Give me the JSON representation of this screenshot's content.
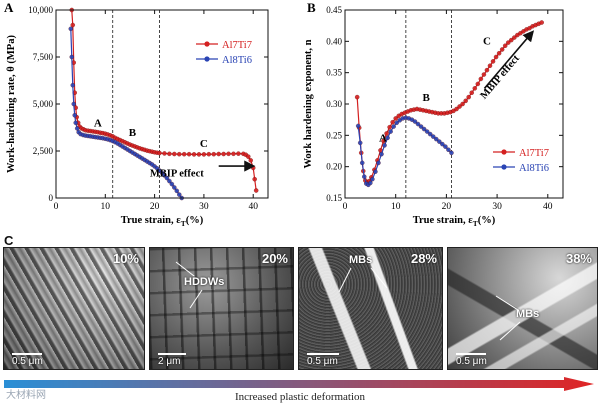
{
  "chart_data": [
    {
      "panel": "A",
      "type": "line",
      "ylabel": "Work-hardening rate, θ (MPa)",
      "xlabel": "True strain, ε",
      "xlabel_sub": "T",
      "xlabel_unit": "(%)",
      "xlim": [
        0,
        43
      ],
      "ylim": [
        0,
        10000
      ],
      "x_ticks": [
        0,
        10,
        20,
        30,
        40
      ],
      "y_ticks": [
        0,
        2500,
        5000,
        7500,
        10000
      ],
      "y_tick_labels": [
        "0",
        "2,500",
        "5,000",
        "7,500",
        "10,000"
      ],
      "grid": false,
      "legend_position": "top-right",
      "stage_lines": [
        11.5,
        21
      ],
      "stage_labels": [
        {
          "text": "A",
          "x": 8.5,
          "y": 3800
        },
        {
          "text": "B",
          "x": 15.5,
          "y": 3300
        },
        {
          "text": "C",
          "x": 30,
          "y": 2700
        }
      ],
      "annotation": {
        "text": "MBIP effect",
        "x": 24.5,
        "y": 1150,
        "arrow_from": [
          33,
          1700
        ],
        "arrow_to": [
          40,
          1700
        ]
      },
      "series": [
        {
          "name": "Al7Ti7",
          "color": "#d42020",
          "marker": "circle",
          "x": [
            3.2,
            3.4,
            3.6,
            3.8,
            4.0,
            4.2,
            4.5,
            4.8,
            5.2,
            5.6,
            6.0,
            6.5,
            7.0,
            7.5,
            8.0,
            8.5,
            9.0,
            9.5,
            10.0,
            10.5,
            11.0,
            11.5,
            12.0,
            12.5,
            13.0,
            13.5,
            14.0,
            14.5,
            15.0,
            15.5,
            16.0,
            16.5,
            17.0,
            17.5,
            18.0,
            18.5,
            19.0,
            19.5,
            20.0,
            20.5,
            21.0,
            22.0,
            23.0,
            24.0,
            25.0,
            26.0,
            27.0,
            28.0,
            29.0,
            30.0,
            31.0,
            32.0,
            33.0,
            34.0,
            35.0,
            36.0,
            37.0,
            38.0,
            38.5,
            39.0,
            39.5,
            40.0,
            40.3,
            40.6
          ],
          "y": [
            10000,
            9200,
            7200,
            5600,
            4800,
            4300,
            4000,
            3800,
            3700,
            3650,
            3600,
            3580,
            3560,
            3540,
            3520,
            3500,
            3470,
            3450,
            3420,
            3380,
            3330,
            3280,
            3200,
            3140,
            3080,
            3020,
            2960,
            2900,
            2840,
            2790,
            2740,
            2690,
            2640,
            2600,
            2560,
            2520,
            2490,
            2460,
            2430,
            2410,
            2390,
            2370,
            2350,
            2340,
            2330,
            2330,
            2330,
            2320,
            2320,
            2320,
            2330,
            2330,
            2340,
            2340,
            2350,
            2350,
            2360,
            2350,
            2300,
            2200,
            2000,
            1600,
            1000,
            400
          ]
        },
        {
          "name": "Al8Ti6",
          "color": "#2a44b4",
          "marker": "circle",
          "x": [
            3.0,
            3.2,
            3.4,
            3.6,
            3.8,
            4.0,
            4.3,
            4.6,
            5.0,
            5.5,
            6.0,
            6.5,
            7.0,
            7.5,
            8.0,
            8.5,
            9.0,
            9.5,
            10.0,
            10.5,
            11.0,
            11.5,
            12.0,
            12.5,
            13.0,
            13.5,
            14.0,
            14.5,
            15.0,
            15.5,
            16.0,
            16.5,
            17.0,
            17.5,
            18.0,
            18.5,
            19.0,
            19.5,
            20.0,
            20.5,
            21.0,
            21.5,
            22.0,
            22.5,
            23.0,
            23.5,
            24.0,
            24.5,
            25.0,
            25.5
          ],
          "y": [
            9000,
            7500,
            6000,
            5000,
            4400,
            4000,
            3700,
            3500,
            3400,
            3350,
            3320,
            3300,
            3280,
            3260,
            3240,
            3220,
            3200,
            3180,
            3150,
            3120,
            3080,
            3030,
            2970,
            2900,
            2820,
            2740,
            2660,
            2580,
            2500,
            2420,
            2340,
            2260,
            2180,
            2100,
            2020,
            1940,
            1860,
            1780,
            1680,
            1580,
            1460,
            1340,
            1200,
            1060,
            900,
            740,
            560,
            380,
            180,
            0
          ]
        }
      ]
    },
    {
      "panel": "B",
      "type": "line",
      "ylabel": "Work hardening exponent, n",
      "xlabel": "True strain, ε",
      "xlabel_sub": "T",
      "xlabel_unit": "(%)",
      "xlim": [
        0,
        43
      ],
      "ylim": [
        0.15,
        0.45
      ],
      "x_ticks": [
        0,
        10,
        20,
        30,
        40
      ],
      "y_ticks": [
        0.15,
        0.2,
        0.25,
        0.3,
        0.35,
        0.4,
        0.45
      ],
      "y_tick_labels": [
        "0.15",
        "0.20",
        "0.25",
        "0.30",
        "0.35",
        "0.40",
        "0.45"
      ],
      "grid": false,
      "legend_position": "bottom-right",
      "stage_lines": [
        12,
        21
      ],
      "stage_labels": [
        {
          "text": "A",
          "x": 7.5,
          "y": 0.24
        },
        {
          "text": "B",
          "x": 16,
          "y": 0.305
        },
        {
          "text": "C",
          "x": 28,
          "y": 0.395
        }
      ],
      "annotation": {
        "text": "MBIP effect",
        "x": 31,
        "y": 0.34,
        "arrow_from": [
          27.5,
          0.325
        ],
        "arrow_to": [
          37,
          0.415
        ]
      },
      "series": [
        {
          "name": "Al7Ti7",
          "color": "#d42020",
          "marker": "circle",
          "x": [
            2.4,
            2.8,
            3.2,
            3.6,
            4.0,
            4.4,
            4.8,
            5.2,
            5.8,
            6.4,
            7.0,
            7.6,
            8.2,
            8.8,
            9.4,
            10.0,
            10.6,
            11.2,
            11.8,
            12.4,
            13.0,
            13.6,
            14.2,
            14.8,
            15.4,
            16.0,
            16.6,
            17.2,
            17.8,
            18.4,
            19.0,
            19.6,
            20.2,
            20.8,
            21.4,
            22.0,
            22.6,
            23.2,
            23.8,
            24.4,
            25.0,
            25.6,
            26.2,
            26.8,
            27.4,
            28.0,
            28.6,
            29.2,
            29.8,
            30.4,
            31.0,
            31.6,
            32.2,
            32.8,
            33.4,
            34.0,
            34.6,
            35.2,
            35.8,
            36.4,
            37.0,
            37.6,
            38.2,
            38.8
          ],
          "y": [
            0.311,
            0.262,
            0.222,
            0.193,
            0.178,
            0.175,
            0.177,
            0.183,
            0.195,
            0.21,
            0.226,
            0.241,
            0.253,
            0.263,
            0.271,
            0.277,
            0.281,
            0.284,
            0.286,
            0.288,
            0.29,
            0.291,
            0.292,
            0.291,
            0.29,
            0.289,
            0.288,
            0.287,
            0.286,
            0.285,
            0.285,
            0.285,
            0.286,
            0.287,
            0.289,
            0.292,
            0.296,
            0.3,
            0.305,
            0.311,
            0.318,
            0.325,
            0.332,
            0.34,
            0.347,
            0.354,
            0.361,
            0.368,
            0.375,
            0.381,
            0.387,
            0.393,
            0.398,
            0.402,
            0.406,
            0.41,
            0.413,
            0.416,
            0.419,
            0.421,
            0.424,
            0.426,
            0.428,
            0.43
          ]
        },
        {
          "name": "Al8Ti6",
          "color": "#2a44b4",
          "marker": "circle",
          "x": [
            2.6,
            3.0,
            3.4,
            3.8,
            4.2,
            4.6,
            5.0,
            5.4,
            6.0,
            6.6,
            7.2,
            7.8,
            8.4,
            9.0,
            9.6,
            10.2,
            10.8,
            11.4,
            12.0,
            12.6,
            13.2,
            13.8,
            14.4,
            15.0,
            15.6,
            16.2,
            16.8,
            17.4,
            18.0,
            18.6,
            19.2,
            19.8,
            20.4,
            21.0
          ],
          "y": [
            0.265,
            0.238,
            0.206,
            0.184,
            0.173,
            0.171,
            0.174,
            0.18,
            0.192,
            0.206,
            0.22,
            0.234,
            0.246,
            0.256,
            0.264,
            0.27,
            0.274,
            0.277,
            0.278,
            0.277,
            0.275,
            0.272,
            0.268,
            0.264,
            0.26,
            0.256,
            0.252,
            0.248,
            0.244,
            0.24,
            0.236,
            0.232,
            0.227,
            0.222
          ]
        }
      ]
    }
  ],
  "panel_c": {
    "letter": "C",
    "tiles": [
      {
        "percent": "10%",
        "scale_bar": "0.5 μm",
        "labels": []
      },
      {
        "percent": "20%",
        "scale_bar": "2 μm",
        "labels": [
          "HDDWs"
        ]
      },
      {
        "percent": "28%",
        "scale_bar": "0.5 μm",
        "labels": [
          "MBs"
        ]
      },
      {
        "percent": "38%",
        "scale_bar": "0.5 μm",
        "labels": [
          "MBs"
        ]
      }
    ],
    "arrow_caption": "Increased plastic deformation",
    "arrow_colors": [
      "#2a8fd6",
      "#e02424"
    ],
    "watermark": "大材料网"
  }
}
